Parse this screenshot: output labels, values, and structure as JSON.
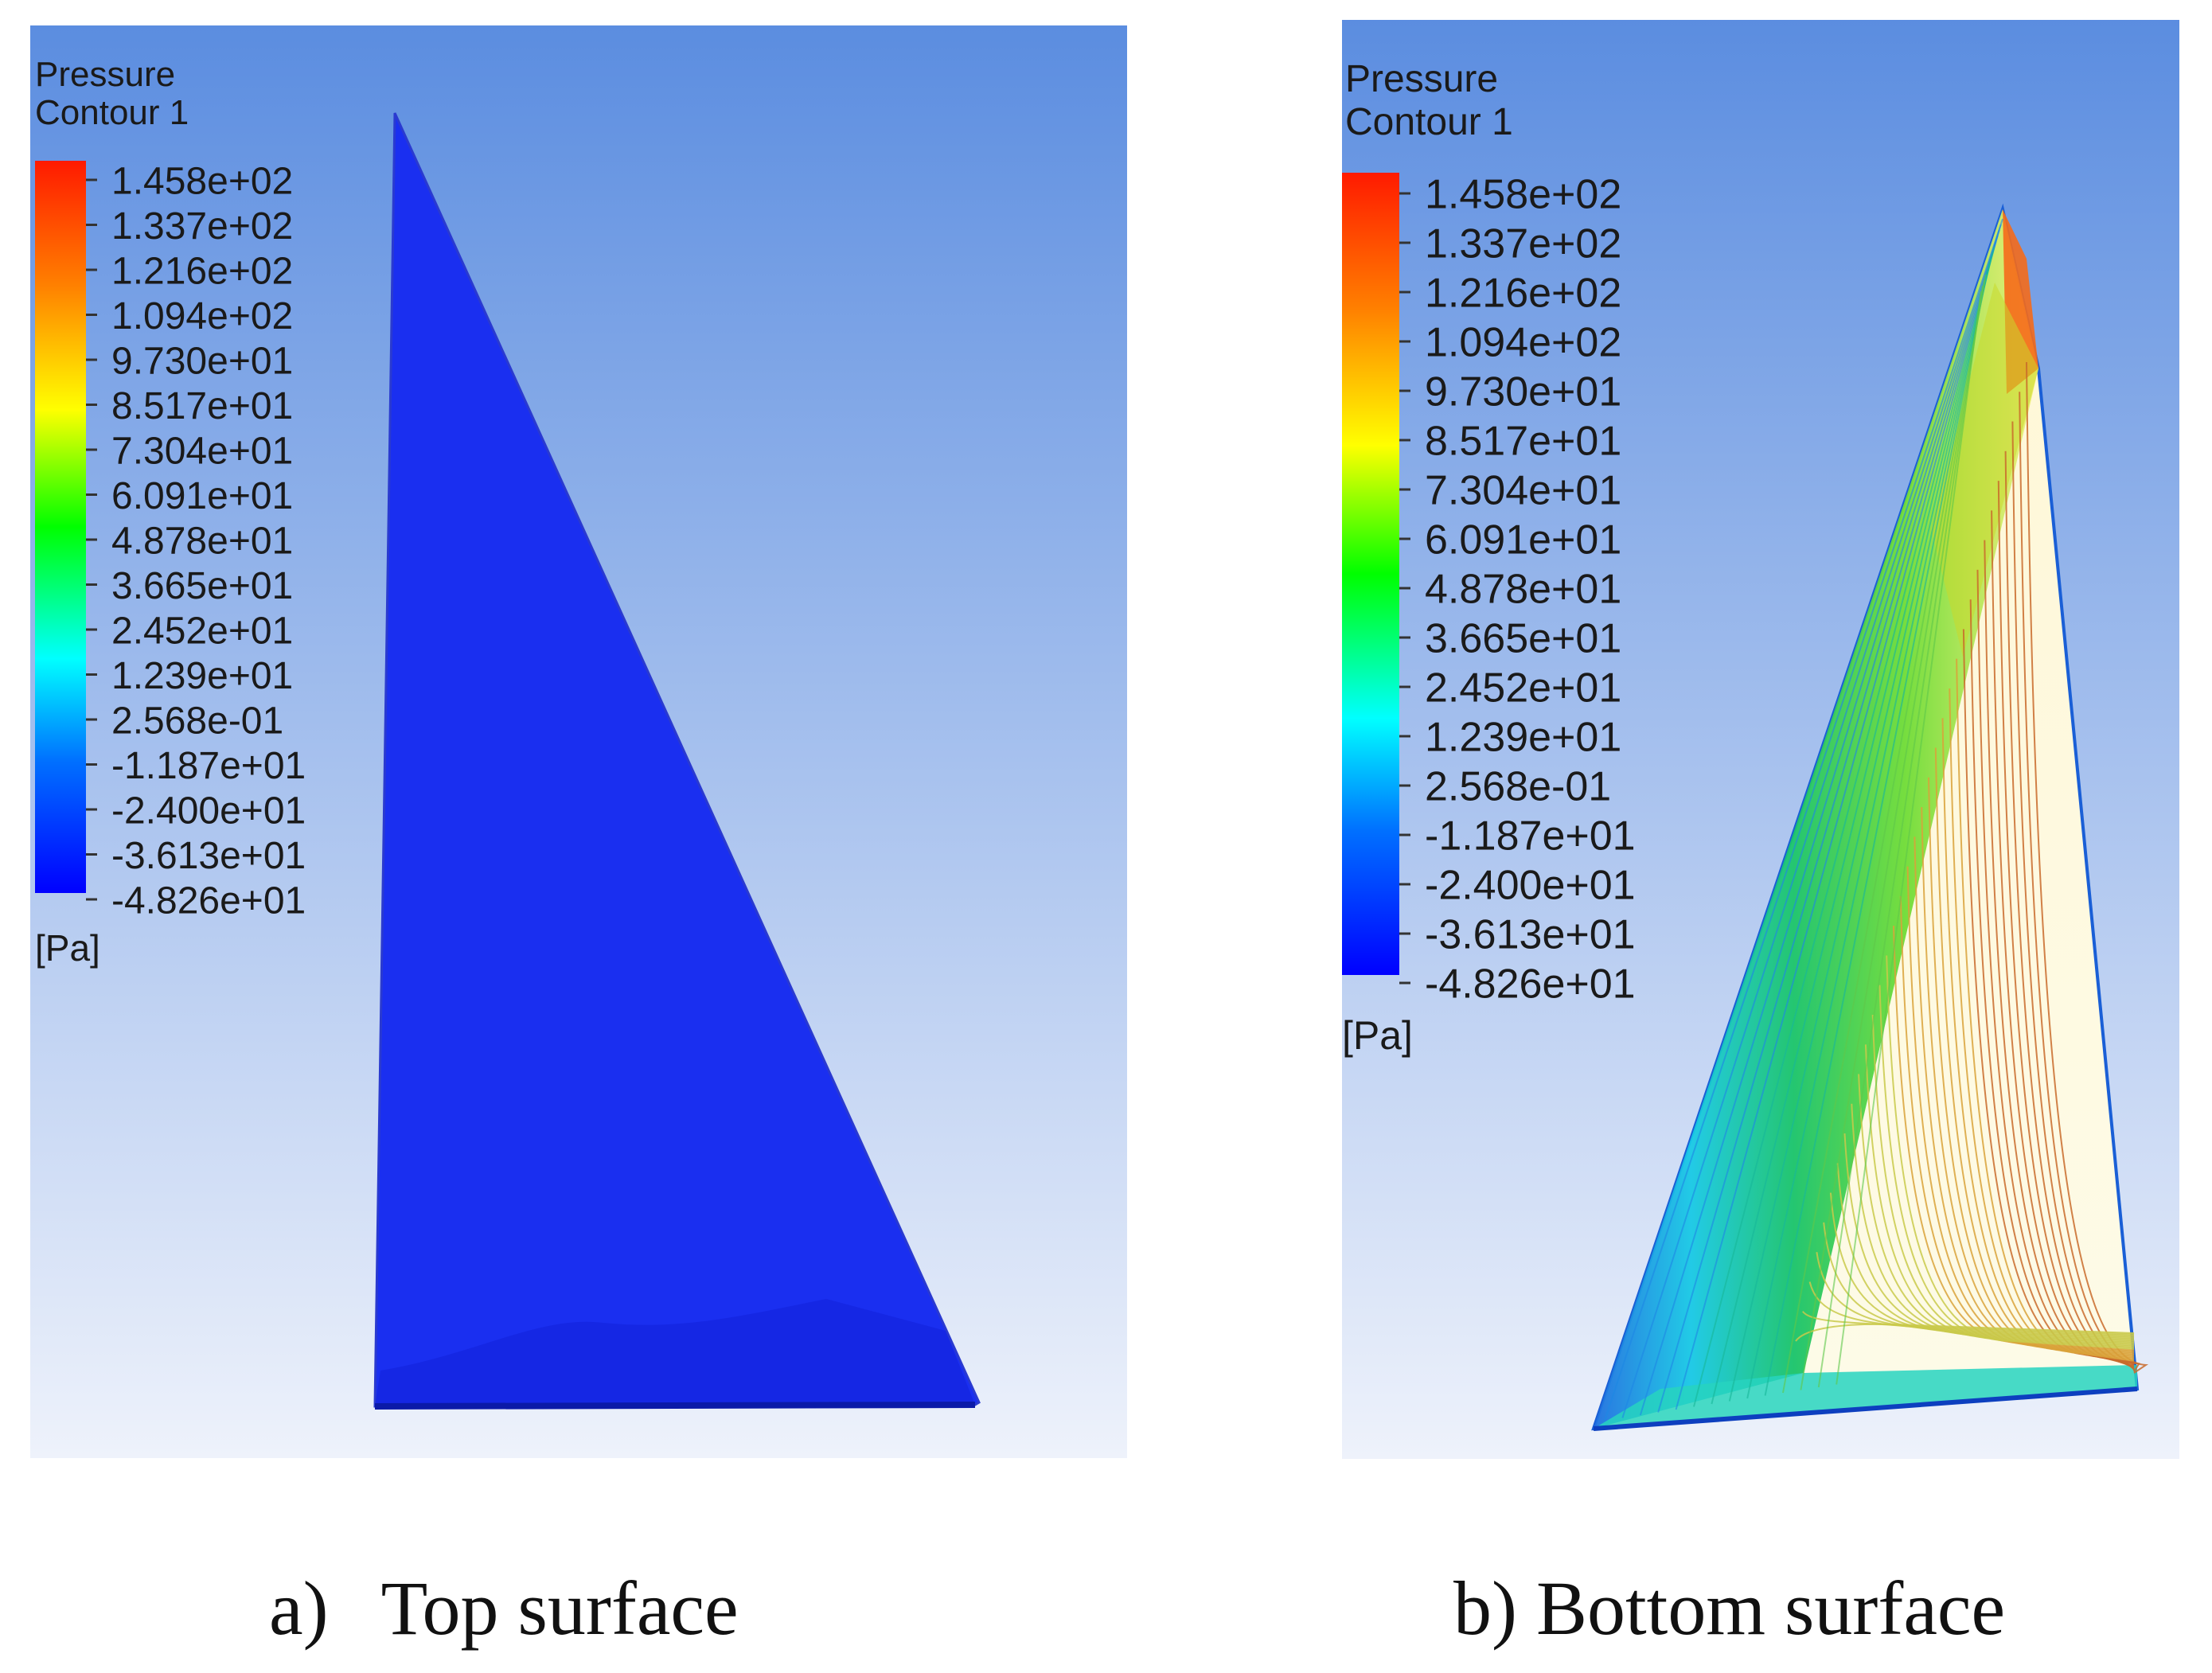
{
  "colors": {
    "background_top": "#5b8de0",
    "background_bottom": "#eef2fb",
    "surface_blue": "#1a2ff0",
    "legend_colormap": [
      "#0000ff",
      "#0070ff",
      "#00ffff",
      "#00ff00",
      "#ffff00",
      "#ff7f00",
      "#ff0000"
    ]
  },
  "panels": [
    {
      "id": "a",
      "legend": {
        "title_line1": "Pressure",
        "title_line2": "Contour 1",
        "ticks": [
          "1.458e+02",
          "1.337e+02",
          "1.216e+02",
          "1.094e+02",
          "9.730e+01",
          "8.517e+01",
          "7.304e+01",
          "6.091e+01",
          "4.878e+01",
          "3.665e+01",
          "2.452e+01",
          "1.239e+01",
          "2.568e-01",
          "-1.187e+01",
          "-2.400e+01",
          "-3.613e+01",
          "-4.826e+01"
        ],
        "unit": "[Pa]"
      },
      "caption_label": "a)",
      "caption_text": "Top surface"
    },
    {
      "id": "b",
      "legend": {
        "title_line1": "Pressure",
        "title_line2": "Contour 1",
        "ticks": [
          "1.458e+02",
          "1.337e+02",
          "1.216e+02",
          "1.094e+02",
          "9.730e+01",
          "8.517e+01",
          "7.304e+01",
          "6.091e+01",
          "4.878e+01",
          "3.665e+01",
          "2.452e+01",
          "1.239e+01",
          "2.568e-01",
          "-1.187e+01",
          "-2.400e+01",
          "-3.613e+01",
          "-4.826e+01"
        ],
        "unit": "[Pa]"
      },
      "caption_label": "b)",
      "caption_text": "Bottom surface"
    }
  ]
}
